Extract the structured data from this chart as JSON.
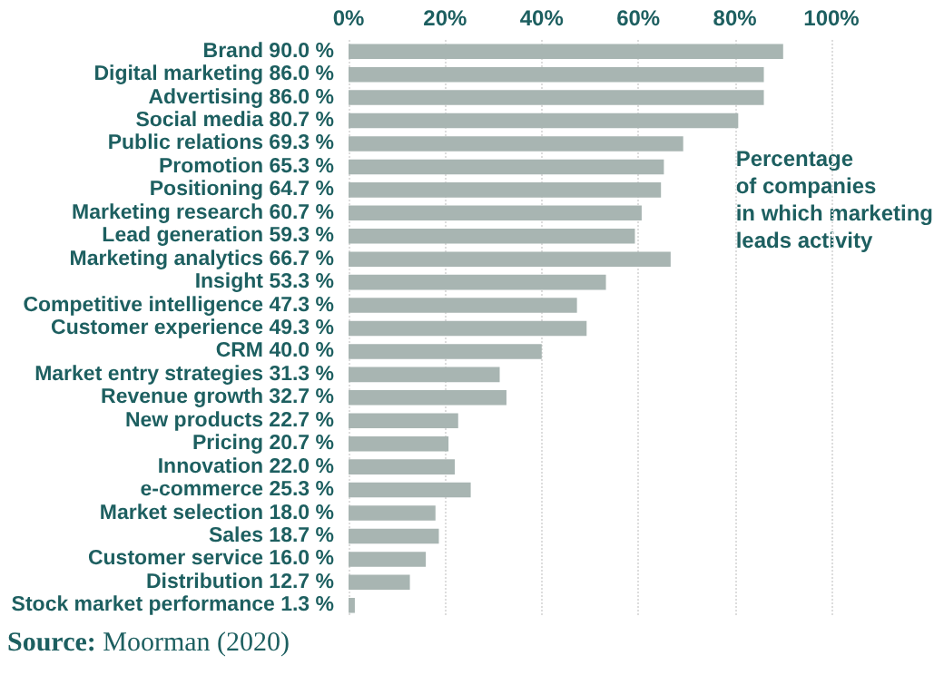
{
  "chart_data": {
    "type": "bar",
    "orientation": "horizontal",
    "categories": [
      "Brand 90.0 %",
      "Digital marketing 86.0 %",
      "Advertising 86.0 %",
      "Social media 80.7 %",
      "Public relations 69.3 %",
      "Promotion 65.3 %",
      "Positioning 64.7 %",
      "Marketing research 60.7 %",
      "Lead generation 59.3 %",
      "Marketing analytics 66.7 %",
      "Insight 53.3 %",
      "Competitive intelligence 47.3 %",
      "Customer experience 49.3 %",
      "CRM 40.0 %",
      "Market entry strategies 31.3 %",
      "Revenue growth 32.7 %",
      "New products 22.7 %",
      "Pricing 20.7 %",
      "Innovation 22.0 %",
      "e-commerce 25.3 %",
      "Market selection 18.0 %",
      "Sales 18.7 %",
      "Customer service 16.0 %",
      "Distribution 12.7 %",
      "Stock market performance 1.3 %"
    ],
    "values": [
      90.0,
      86.0,
      86.0,
      80.7,
      69.3,
      65.3,
      64.7,
      60.7,
      59.3,
      66.7,
      53.3,
      47.3,
      49.3,
      40.0,
      31.3,
      32.7,
      22.7,
      20.7,
      22.0,
      25.3,
      18.0,
      18.7,
      16.0,
      12.7,
      1.3
    ],
    "color": "#a8b5b2",
    "xlim": [
      0,
      100
    ],
    "xticks": [
      {
        "value": 0,
        "label": "0%"
      },
      {
        "value": 20,
        "label": "20%"
      },
      {
        "value": 40,
        "label": "40%"
      },
      {
        "value": 60,
        "label": "60%"
      },
      {
        "value": 80,
        "label": "80%"
      },
      {
        "value": 100,
        "label": "100%"
      }
    ],
    "grid": "x",
    "annotations": [
      "Percentage of companies in which marketing leads activity",
      "Source: Moorman (2020)"
    ]
  }
}
